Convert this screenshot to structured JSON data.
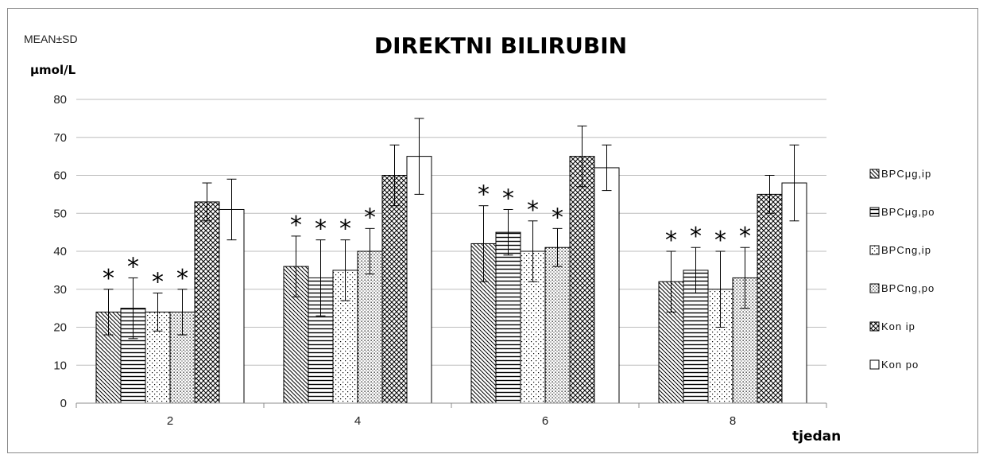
{
  "chart_data": {
    "type": "bar",
    "title": "DIREKTNI BILIRUBIN",
    "subtitle": "MEAN±SD",
    "ylabel": "μmol/L",
    "xlabel": "tjedan",
    "categories": [
      "2",
      "4",
      "6",
      "8"
    ],
    "ylim": [
      0,
      80
    ],
    "yticks": [
      0,
      10,
      20,
      30,
      40,
      50,
      60,
      70,
      80
    ],
    "grid": true,
    "legend_position": "right",
    "significance_marker": "*",
    "series": [
      {
        "name": "BPCμg,ip",
        "pattern": "diagonal",
        "values": [
          24,
          36,
          42,
          32
        ],
        "sd": [
          6,
          8,
          10,
          8
        ],
        "significant": [
          true,
          true,
          true,
          true
        ]
      },
      {
        "name": "BPCμg,po",
        "pattern": "horizontal",
        "values": [
          25,
          33,
          45,
          35
        ],
        "sd": [
          8,
          10,
          6,
          6
        ],
        "significant": [
          true,
          true,
          true,
          true
        ]
      },
      {
        "name": "BPCng,ip",
        "pattern": "dots-sparse",
        "values": [
          24,
          35,
          40,
          30
        ],
        "sd": [
          5,
          8,
          8,
          10
        ],
        "significant": [
          true,
          true,
          true,
          true
        ]
      },
      {
        "name": "BPCng,po",
        "pattern": "dots-dense",
        "values": [
          24,
          40,
          41,
          33
        ],
        "sd": [
          6,
          6,
          5,
          8
        ],
        "significant": [
          true,
          true,
          true,
          true
        ]
      },
      {
        "name": "Kon ip",
        "pattern": "crosshatch",
        "values": [
          53,
          60,
          65,
          55
        ],
        "sd": [
          5,
          8,
          8,
          5
        ],
        "significant": [
          false,
          false,
          false,
          false
        ]
      },
      {
        "name": "Kon po",
        "pattern": "none",
        "values": [
          51,
          65,
          62,
          58
        ],
        "sd": [
          8,
          10,
          6,
          10
        ],
        "significant": [
          false,
          false,
          false,
          false
        ]
      }
    ]
  }
}
